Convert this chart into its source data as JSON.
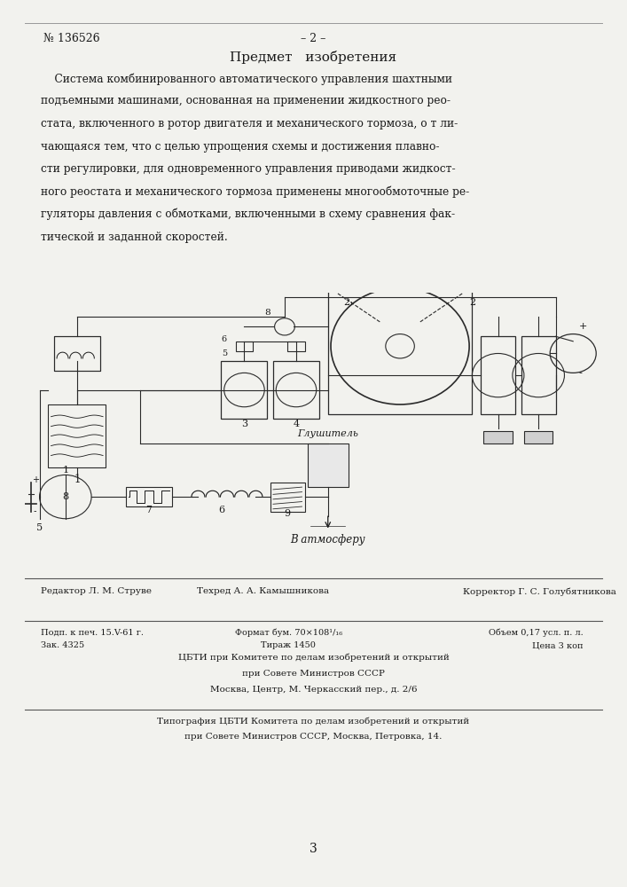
{
  "bg_color": "#f2f2ee",
  "text_color": "#1a1a1a",
  "header_number": "№ 136526",
  "header_center": "– 2 –",
  "section_title": "Предмет   изобретения",
  "main_lines": [
    "    Система комбинированного автоматического управления шахтными",
    "подъемными машинами, основанная на применении жидкостного рео-",
    "стата, включенного в ротор двигателя и механического тормоза, о т ли-",
    "чающаяся тем, что с целью упрощения схемы и достижения плавно-",
    "сти регулировки, для одновременного управления приводами жидкост-",
    "ного реостата и механического тормоза применены многообмоточные ре-",
    "гуляторы давления с обмотками, включенными в схему сравнения фак-",
    "тической и заданной скоростей."
  ],
  "footer_editor": "Редактор Л. М. Струве",
  "footer_techr": "Техред А. А. Камышникова",
  "footer_corrector": "Корректор Г. С. Голубятникова",
  "footer_line1_left": "Подп. к печ. 15.V-61 г.",
  "footer_line1_center": "Формат бум. 70×108¹/₁₆",
  "footer_line1_right": "Объем 0,17 усл. п. л.",
  "footer_line2_left": "Зак. 4325",
  "footer_line2_center": "Тираж 1450",
  "footer_line2_right": "Цена 3 коп",
  "footer_cbti_line1": "ЦБТИ при Комитете по делам изобретений и открытий",
  "footer_cbti_line2": "при Совете Министров СССР",
  "footer_cbti_line3": "Москва, Центр, М. Черкасский пер., д. 2/6",
  "footer_tipogr_line1": "Типография ЦБТИ Комитета по делам изобретений и открытий",
  "footer_tipogr_line2": "при Совете Министров СССР, Москва, Петровка, 14.",
  "page_number": "3",
  "glusitel": "Глушитель",
  "v_atmosferu": "В атмосферу"
}
